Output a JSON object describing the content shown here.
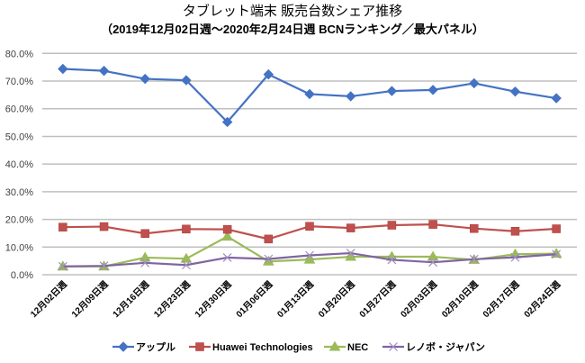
{
  "chart_data": {
    "type": "line",
    "title": "タブレット端末 販売台数シェア推移",
    "subtitle": "（2019年12月02日週～2020年2月24日週 BCNランキング／最大パネル）",
    "xlabel": "",
    "ylabel": "",
    "ylim": [
      0,
      80
    ],
    "yticks": [
      0,
      10,
      20,
      30,
      40,
      50,
      60,
      70,
      80
    ],
    "ytick_labels": [
      "0.0%",
      "10.0%",
      "20.0%",
      "30.0%",
      "40.0%",
      "50.0%",
      "60.0%",
      "70.0%",
      "80.0%"
    ],
    "grid": true,
    "legend_position": "bottom",
    "categories": [
      "12月02日週",
      "12月09日週",
      "12月16日週",
      "12月23日週",
      "12月30日週",
      "01月06日週",
      "01月13日週",
      "01月20日週",
      "01月27日週",
      "02月03日週",
      "02月10日週",
      "02月17日週",
      "02月24日週"
    ],
    "series": [
      {
        "name": "アップル",
        "color": "#4472C4",
        "marker": "diamond",
        "values": [
          74.4,
          73.7,
          70.8,
          70.3,
          55.2,
          72.4,
          65.3,
          64.5,
          66.4,
          66.8,
          69.2,
          66.2,
          63.8
        ]
      },
      {
        "name": "Huawei Technologies",
        "color": "#C0504D",
        "marker": "square",
        "values": [
          17.2,
          17.4,
          14.9,
          16.5,
          16.4,
          12.9,
          17.5,
          16.9,
          17.9,
          18.2,
          16.7,
          15.7,
          16.6
        ]
      },
      {
        "name": "NEC",
        "color": "#9BBB59",
        "marker": "triangle",
        "values": [
          3.0,
          3.0,
          6.2,
          5.8,
          13.8,
          4.8,
          5.5,
          6.5,
          6.5,
          6.5,
          5.4,
          7.4,
          7.6
        ]
      },
      {
        "name": "レノボ・ジャパン",
        "color": "#8064A2",
        "marker": "x",
        "values": [
          3.0,
          3.2,
          4.3,
          3.5,
          6.2,
          5.7,
          7.0,
          7.8,
          5.4,
          4.5,
          5.6,
          6.3,
          7.4
        ]
      }
    ]
  }
}
